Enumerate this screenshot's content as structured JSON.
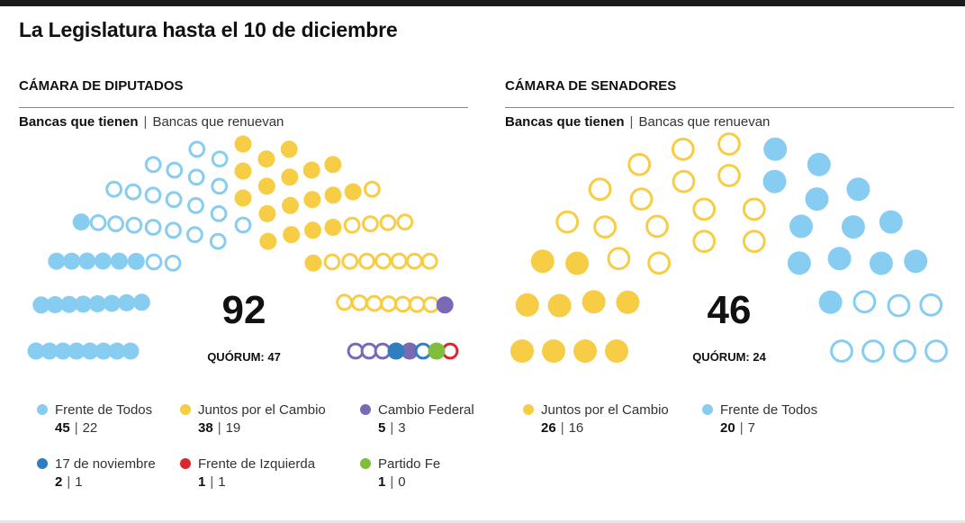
{
  "title": "La Legislatura hasta el 10 de diciembre",
  "subtitle_have": "Bancas que tienen",
  "subtitle_sep": "|",
  "subtitle_renew": "Bancas que renuevan",
  "colors": {
    "frente_de_todos": "#87cdf2",
    "juntos_por_el_cambio": "#f7cd46",
    "cambio_federal": "#7a6ab5",
    "17_de_noviembre": "#2f7fc0",
    "frente_de_izquierda": "#d9272e",
    "partido_fe": "#80bd3a"
  },
  "chart_data": [
    {
      "type": "parliament",
      "title": "CÁMARA DE DIPUTADOS",
      "total": 92,
      "quorum_label": "QUÓRUM: 47",
      "series": [
        {
          "name": "Frente de Todos",
          "seats": 45,
          "renew": 22,
          "color_key": "frente_de_todos"
        },
        {
          "name": "Juntos por el Cambio",
          "seats": 38,
          "renew": 19,
          "color_key": "juntos_por_el_cambio"
        },
        {
          "name": "Cambio Federal",
          "seats": 5,
          "renew": 3,
          "color_key": "cambio_federal"
        },
        {
          "name": "17 de noviembre",
          "seats": 2,
          "renew": 1,
          "color_key": "17_de_noviembre"
        },
        {
          "name": "Frente de Izquierda",
          "seats": 1,
          "renew": 1,
          "color_key": "frente_de_izquierda"
        },
        {
          "name": "Partido Fe",
          "seats": 1,
          "renew": 0,
          "color_key": "partido_fe"
        }
      ]
    },
    {
      "type": "parliament",
      "title": "CÁMARA DE SENADORES",
      "total": 46,
      "quorum_label": "QUÓRUM: 24",
      "series": [
        {
          "name": "Juntos por el Cambio",
          "seats": 26,
          "renew": 16,
          "color_key": "juntos_por_el_cambio"
        },
        {
          "name": "Frente de Todos",
          "seats": 20,
          "renew": 7,
          "color_key": "frente_de_todos"
        }
      ]
    }
  ]
}
